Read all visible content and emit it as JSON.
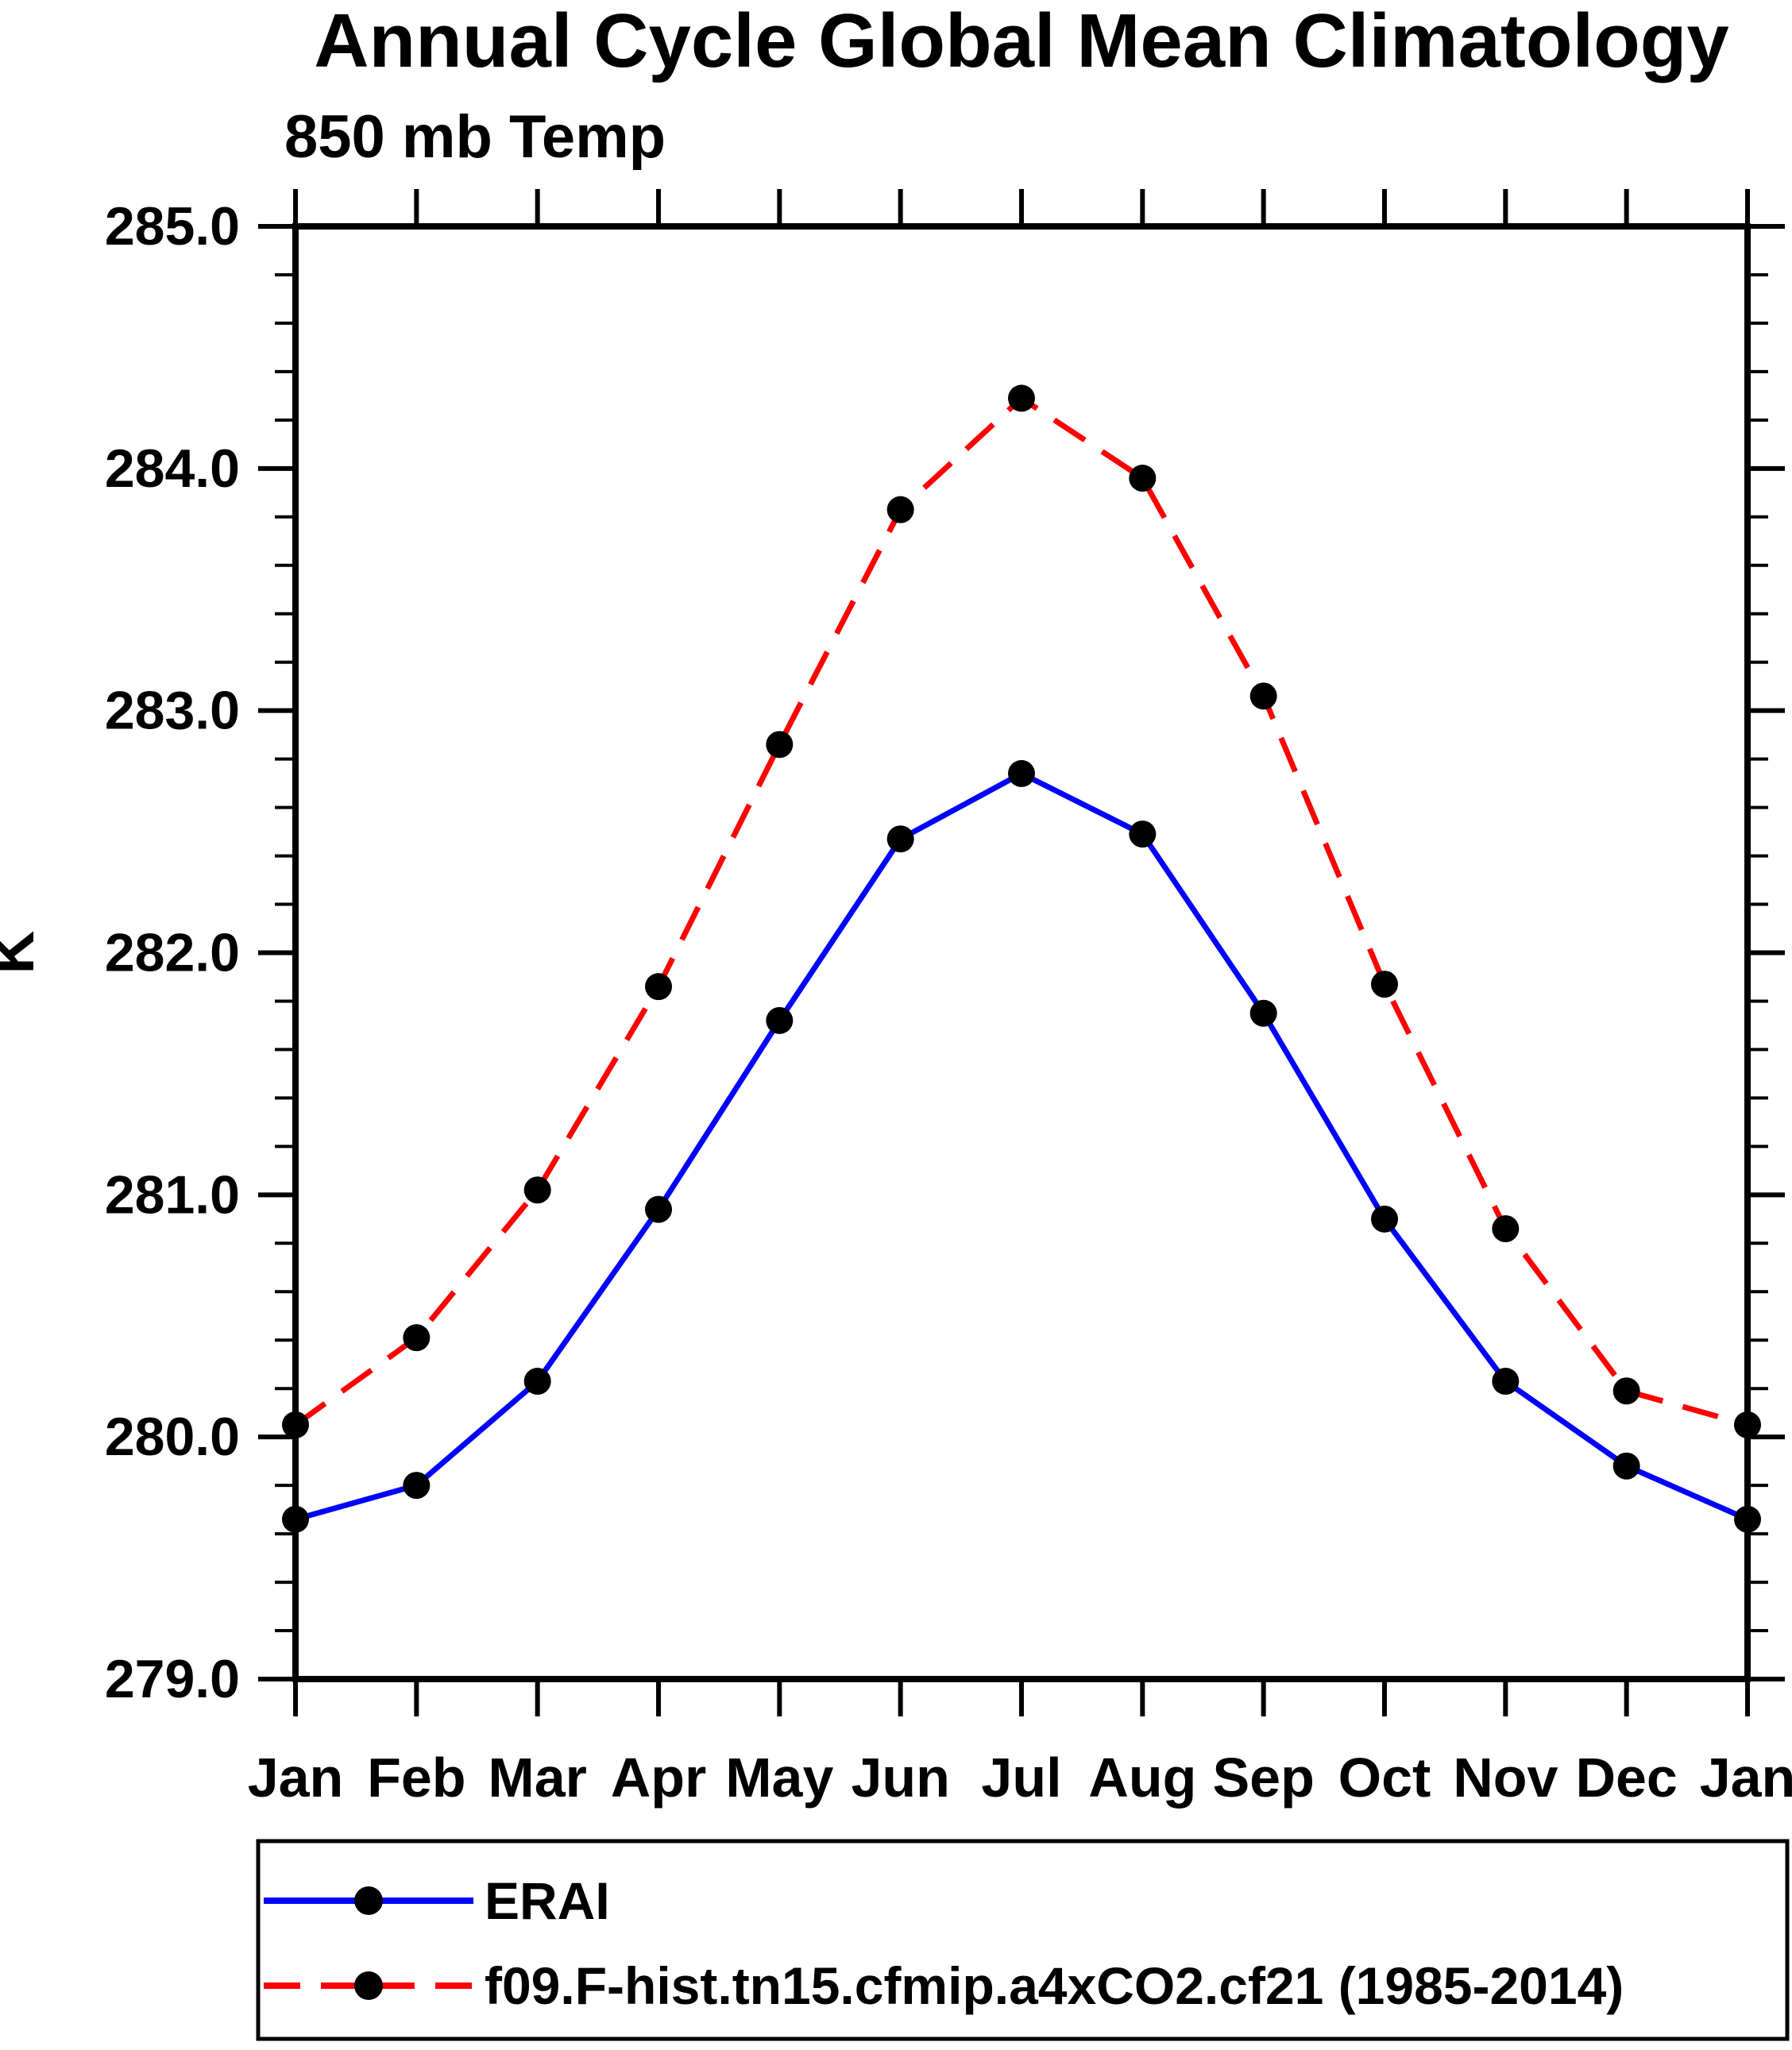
{
  "chart_data": {
    "type": "line",
    "title": "Annual Cycle Global Mean Climatology",
    "subtitle": "850 mb Temp",
    "ylabel": "K",
    "xlabel": "",
    "categories": [
      "Jan",
      "Feb",
      "Mar",
      "Apr",
      "May",
      "Jun",
      "Jul",
      "Aug",
      "Sep",
      "Oct",
      "Nov",
      "Dec",
      "Jan"
    ],
    "series": [
      {
        "name": "ERAI",
        "color": "#0000ff",
        "line_style": "solid",
        "marker": "filled-circle",
        "marker_color": "#000000",
        "values": [
          279.66,
          279.8,
          280.23,
          280.94,
          281.72,
          282.47,
          282.74,
          282.49,
          281.75,
          280.9,
          280.23,
          279.88,
          279.66
        ]
      },
      {
        "name": "f09.F-hist.tn15.cfmip.a4xCO2.cf21 (1985-2014)",
        "color": "#ff0000",
        "line_style": "dashed",
        "marker": "filled-circle",
        "marker_color": "#000000",
        "values": [
          280.05,
          280.41,
          281.02,
          281.86,
          282.86,
          283.83,
          284.29,
          283.96,
          283.06,
          281.87,
          280.86,
          280.19,
          280.05
        ]
      }
    ],
    "ylim": [
      279.0,
      285.0
    ],
    "ytick_step": 1.0,
    "yminor_step": 0.2,
    "ytick_decimals": 1,
    "grid": false,
    "legend_position": "bottom",
    "axis_color": "#000000",
    "background_color": "#ffffff"
  }
}
